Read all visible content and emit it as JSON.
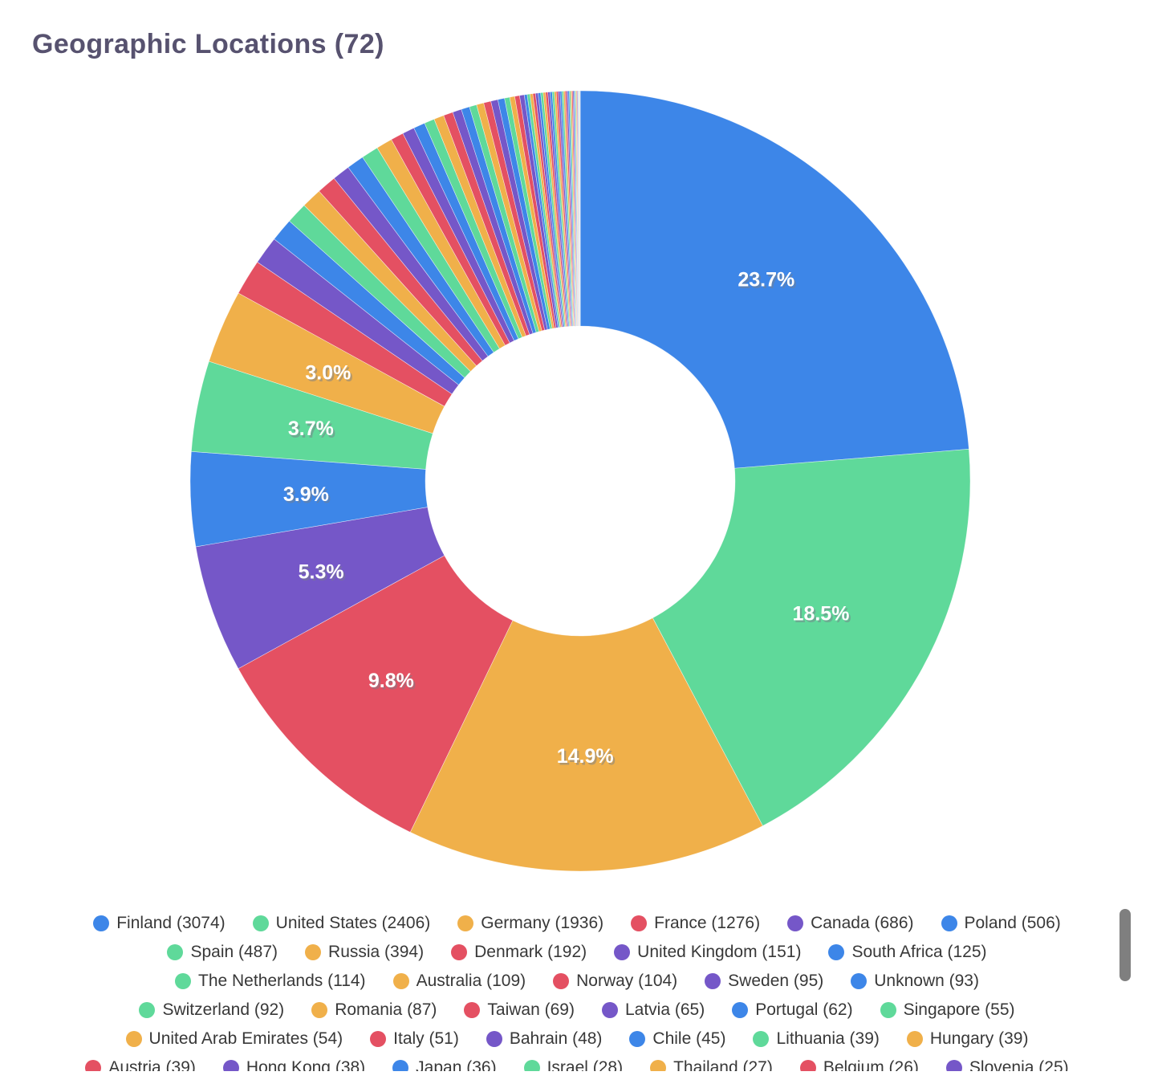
{
  "title": "Geographic Locations (72)",
  "chart_data": {
    "type": "pie",
    "subtype": "doughnut",
    "title": "Geographic Locations (72)",
    "total_locations": 72,
    "legend_position": "bottom",
    "donut_hole_ratio": 0.4,
    "palette": [
      "#3d86e8",
      "#5fd99a",
      "#f0b04a",
      "#e45062",
      "#7557c8"
    ],
    "percent_labels": [
      "23.7%",
      "18.5%",
      "14.9%",
      "9.8%",
      "5.3%",
      "3.9%",
      "3.7%",
      "3.0%"
    ],
    "entries": [
      {
        "label": "Finland",
        "value": 3074
      },
      {
        "label": "United States",
        "value": 2406
      },
      {
        "label": "Germany",
        "value": 1936
      },
      {
        "label": "France",
        "value": 1276
      },
      {
        "label": "Canada",
        "value": 686
      },
      {
        "label": "Poland",
        "value": 506
      },
      {
        "label": "Spain",
        "value": 487
      },
      {
        "label": "Russia",
        "value": 394
      },
      {
        "label": "Denmark",
        "value": 192
      },
      {
        "label": "United Kingdom",
        "value": 151
      },
      {
        "label": "South Africa",
        "value": 125
      },
      {
        "label": "The Netherlands",
        "value": 114
      },
      {
        "label": "Australia",
        "value": 109
      },
      {
        "label": "Norway",
        "value": 104
      },
      {
        "label": "Sweden",
        "value": 95
      },
      {
        "label": "Unknown",
        "value": 93
      },
      {
        "label": "Switzerland",
        "value": 92
      },
      {
        "label": "Romania",
        "value": 87
      },
      {
        "label": "Taiwan",
        "value": 69
      },
      {
        "label": "Latvia",
        "value": 65
      },
      {
        "label": "Portugal",
        "value": 62
      },
      {
        "label": "Singapore",
        "value": 55
      },
      {
        "label": "United Arab Emirates",
        "value": 54
      },
      {
        "label": "Italy",
        "value": 51
      },
      {
        "label": "Bahrain",
        "value": 48
      },
      {
        "label": "Chile",
        "value": 45
      },
      {
        "label": "Lithuania",
        "value": 39
      },
      {
        "label": "Hungary",
        "value": 39
      },
      {
        "label": "Austria",
        "value": 39
      },
      {
        "label": "Hong Kong",
        "value": 38
      },
      {
        "label": "Japan",
        "value": 36
      },
      {
        "label": "Israel",
        "value": 28
      },
      {
        "label": "Thailand",
        "value": 27
      },
      {
        "label": "Belgium",
        "value": 26
      },
      {
        "label": "Slovenia",
        "value": 25
      }
    ]
  }
}
